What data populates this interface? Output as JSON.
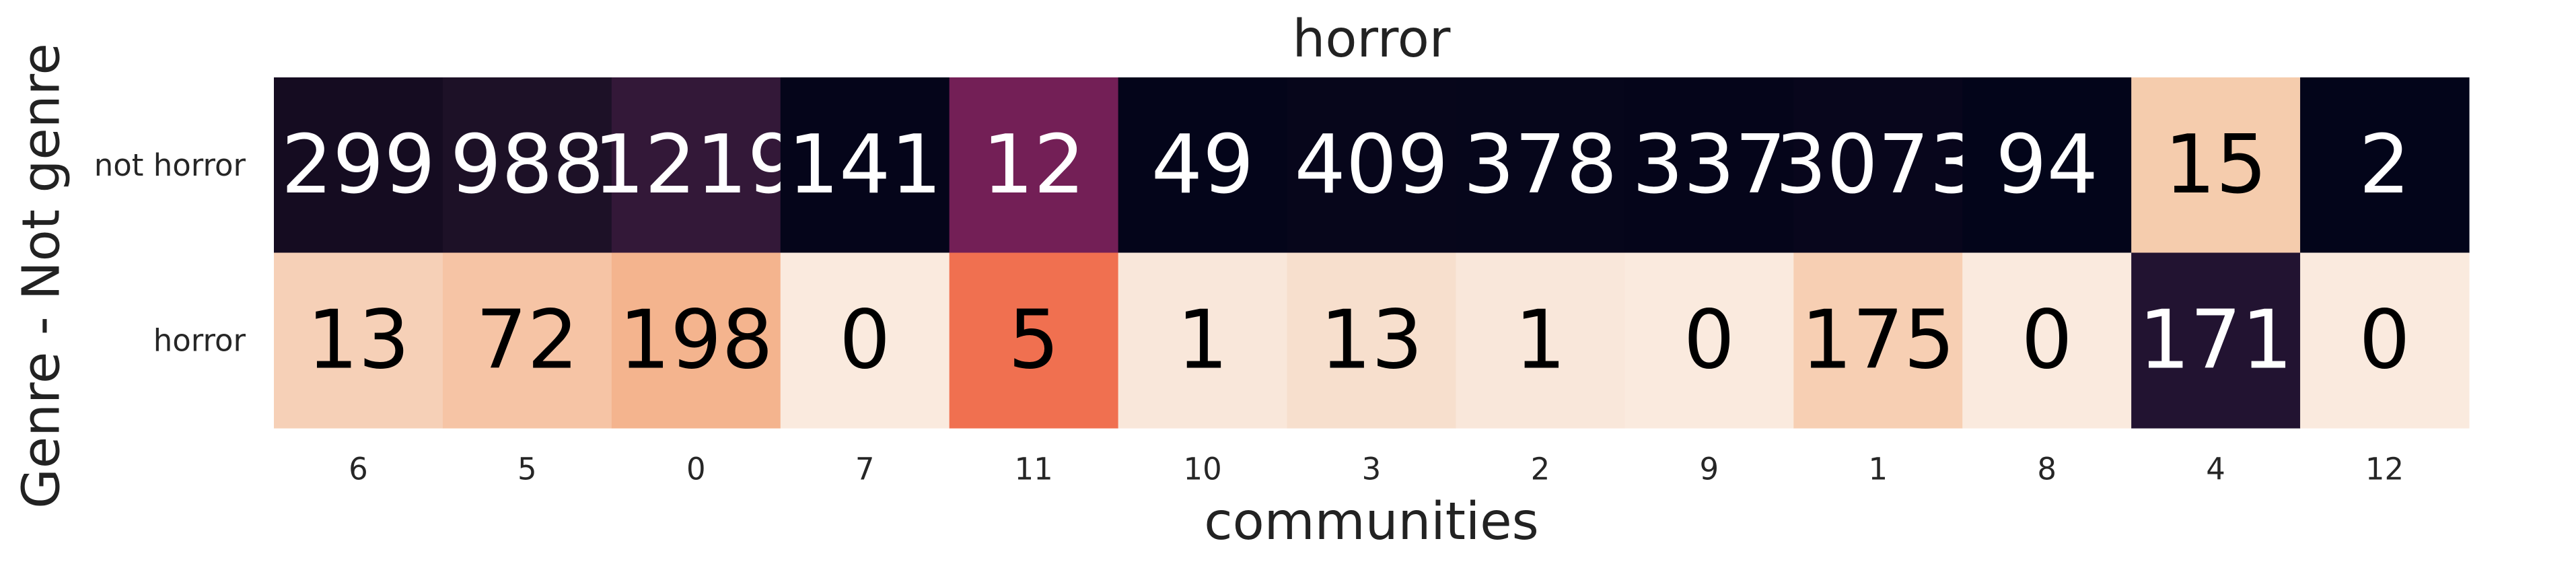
{
  "chart_data": {
    "type": "heatmap",
    "title": "horror",
    "xlabel": "communities",
    "ylabel": "Genre - Not genre",
    "x_categories": [
      "6",
      "5",
      "0",
      "7",
      "11",
      "10",
      "3",
      "2",
      "9",
      "1",
      "8",
      "4",
      "12"
    ],
    "y_categories": [
      "not horror",
      "horror"
    ],
    "values": [
      [
        299,
        988,
        1219,
        141,
        12,
        49,
        409,
        378,
        337,
        3073,
        94,
        15,
        2
      ],
      [
        13,
        72,
        198,
        0,
        5,
        1,
        13,
        1,
        0,
        175,
        0,
        171,
        0
      ]
    ],
    "color_scale": "rocket",
    "colorbar": false,
    "grid": false
  },
  "cell_colors": [
    [
      "#150c21",
      "#1d1127",
      "#331838",
      "#05051a",
      "#731f56",
      "#04051a",
      "#07061b",
      "#06061b",
      "#05051a",
      "#08061c",
      "#03051a",
      "#f5ccad",
      "#03051a"
    ],
    [
      "#f6d0b7",
      "#f6c4a5",
      "#f4b48e",
      "#faeade",
      "#f07050",
      "#f9e7da",
      "#f7dfcd",
      "#f9e7da",
      "#faeade",
      "#f7cfb3",
      "#faeade",
      "#221331",
      "#faeade"
    ]
  ],
  "cell_text_colors": [
    [
      "#ffffff",
      "#ffffff",
      "#ffffff",
      "#ffffff",
      "#ffffff",
      "#ffffff",
      "#ffffff",
      "#ffffff",
      "#ffffff",
      "#ffffff",
      "#ffffff",
      "#000000",
      "#ffffff"
    ],
    [
      "#000000",
      "#000000",
      "#000000",
      "#000000",
      "#000000",
      "#000000",
      "#000000",
      "#000000",
      "#000000",
      "#000000",
      "#000000",
      "#ffffff",
      "#000000"
    ]
  ]
}
